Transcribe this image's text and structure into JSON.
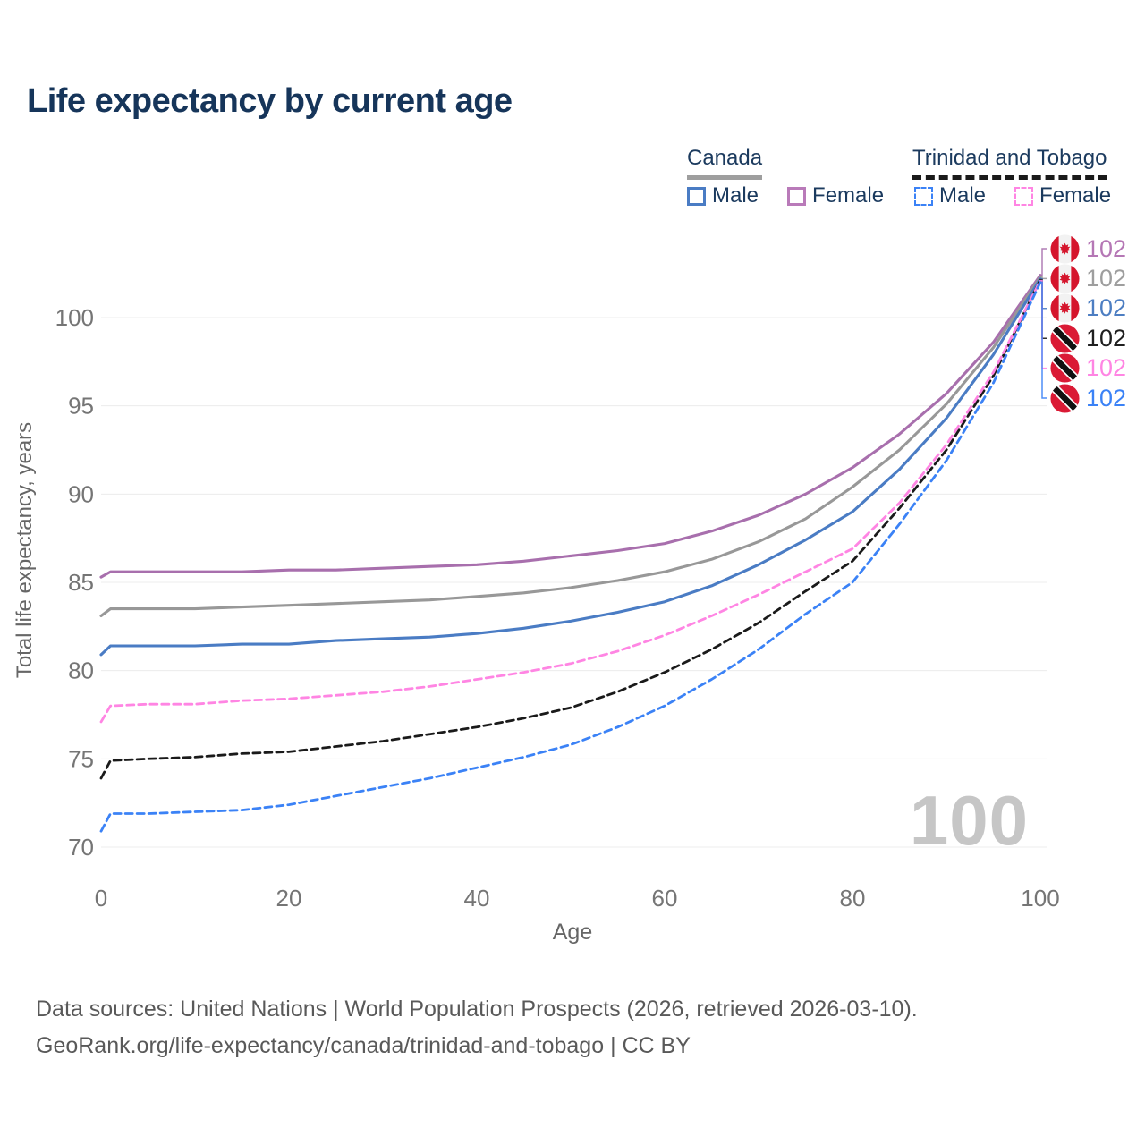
{
  "title": "Life expectancy by current age",
  "legend": {
    "groups": [
      {
        "label": "Canada",
        "line_style": "solid",
        "underline_color": "#9e9e9e",
        "items": [
          {
            "label": "Male",
            "color": "#4a7cc4",
            "dashed": false
          },
          {
            "label": "Female",
            "color": "#b97ab9",
            "dashed": false
          }
        ]
      },
      {
        "label": "Trinidad and Tobago",
        "line_style": "dashed",
        "underline_color": "#1a1a1a",
        "items": [
          {
            "label": "Male",
            "color": "#3b82f6",
            "dashed": true
          },
          {
            "label": "Female",
            "color": "#ff85e3",
            "dashed": true
          }
        ]
      }
    ]
  },
  "chart_data": {
    "type": "line",
    "title": "Life expectancy by current age",
    "xlabel": "Age",
    "ylabel": "Total life expectancy, years",
    "xlim": [
      0,
      100
    ],
    "ylim": [
      69,
      103.5
    ],
    "xticks": [
      0,
      20,
      40,
      60,
      80,
      100
    ],
    "yticks": [
      70,
      75,
      80,
      85,
      90,
      95,
      100
    ],
    "grid": "horizontal",
    "legend_position": "top-right",
    "x": [
      0,
      1,
      5,
      10,
      15,
      20,
      25,
      30,
      35,
      40,
      45,
      50,
      55,
      60,
      65,
      70,
      75,
      80,
      85,
      90,
      95,
      100
    ],
    "series": [
      {
        "name": "Canada Female",
        "country": "canada",
        "color": "#a86fad",
        "label_color": "#b577b5",
        "dashed": false,
        "values": [
          85.3,
          85.6,
          85.6,
          85.6,
          85.6,
          85.7,
          85.7,
          85.8,
          85.9,
          86.0,
          86.2,
          86.5,
          86.8,
          87.2,
          87.9,
          88.8,
          90.0,
          91.5,
          93.4,
          95.7,
          98.6,
          102.4
        ],
        "end_label": "102"
      },
      {
        "name": "Canada Both sexes",
        "country": "canada",
        "color": "#989898",
        "label_color": "#9e9e9e",
        "dashed": false,
        "values": [
          83.1,
          83.5,
          83.5,
          83.5,
          83.6,
          83.7,
          83.8,
          83.9,
          84.0,
          84.2,
          84.4,
          84.7,
          85.1,
          85.6,
          86.3,
          87.3,
          88.6,
          90.4,
          92.5,
          95.1,
          98.3,
          102.3
        ],
        "end_label": "102"
      },
      {
        "name": "Canada Male",
        "country": "canada",
        "color": "#4a7cc4",
        "label_color": "#4d7ec2",
        "dashed": false,
        "values": [
          80.9,
          81.4,
          81.4,
          81.4,
          81.5,
          81.5,
          81.7,
          81.8,
          81.9,
          82.1,
          82.4,
          82.8,
          83.3,
          83.9,
          84.8,
          86.0,
          87.4,
          89.0,
          91.4,
          94.3,
          97.9,
          102.2
        ],
        "end_label": "102"
      },
      {
        "name": "Trinidad and Tobago Both sexes",
        "country": "trinidad-and-tobago",
        "color": "#1a1a1a",
        "label_color": "#1f1f1f",
        "dashed": true,
        "values": [
          73.9,
          74.9,
          75.0,
          75.1,
          75.3,
          75.4,
          75.7,
          76.0,
          76.4,
          76.8,
          77.3,
          77.9,
          78.8,
          79.9,
          81.2,
          82.7,
          84.5,
          86.2,
          89.2,
          92.5,
          96.7,
          102.15
        ],
        "end_label": "102"
      },
      {
        "name": "Trinidad and Tobago Female",
        "country": "trinidad-and-tobago",
        "color": "#ff85e3",
        "label_color": "#ff85e3",
        "dashed": true,
        "values": [
          77.1,
          78.0,
          78.1,
          78.1,
          78.3,
          78.4,
          78.6,
          78.8,
          79.1,
          79.5,
          79.9,
          80.4,
          81.1,
          82.0,
          83.1,
          84.3,
          85.6,
          86.9,
          89.5,
          92.8,
          96.9,
          102.1
        ],
        "end_label": "102"
      },
      {
        "name": "Trinidad and Tobago Male",
        "country": "trinidad-and-tobago",
        "color": "#3b82f6",
        "label_color": "#3b82f6",
        "dashed": true,
        "values": [
          70.9,
          71.9,
          71.9,
          72.0,
          72.1,
          72.4,
          72.9,
          73.4,
          73.9,
          74.5,
          75.1,
          75.8,
          76.8,
          78.0,
          79.5,
          81.2,
          83.2,
          85.0,
          88.3,
          91.9,
          96.3,
          102.0
        ],
        "end_label": "102"
      }
    ]
  },
  "watermark": "100",
  "footer": {
    "line1": "Data sources: United Nations | World Population Prospects (2026, retrieved 2026-03-10).",
    "line2": "GeoRank.org/life-expectancy/canada/trinidad-and-tobago | CC BY"
  }
}
